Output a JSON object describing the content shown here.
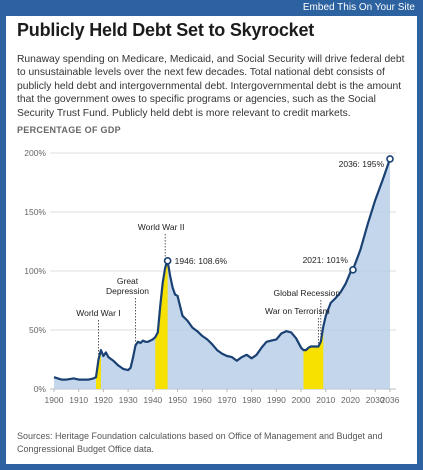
{
  "header": {
    "embed_label": "Embed This On Your Site"
  },
  "title": "Publicly Held Debt Set to Skyrocket",
  "description": "Runaway spending on Medicare, Medicaid, and Social Security will drive federal debt to unsustainable levels over the next few decades. Total national debt consists of publicly held debt and intergovernmental debt. Intergovernmental debt is the amount that the government owes to specific programs or agencies, such as the Social Security Trust Fund. Publicly held debt is more relevant to credit markets.",
  "sources": "Sources: Heritage Foundation calculations based on Office of Management and Budget and Congressional Budget Office data.",
  "colors": {
    "frame": "#2c62a0",
    "area": "#b9cfe8",
    "line": "#1a4173",
    "war_highlight": "#f6e100",
    "grid": "#dddddd",
    "text": "#333333"
  },
  "chart_data": {
    "type": "area",
    "title": "",
    "ylabel": "PERCENTAGE OF GDP",
    "xlabel": "",
    "xlim": [
      1900,
      2036
    ],
    "ylim": [
      0,
      200
    ],
    "x_ticks": [
      "1900",
      "1910",
      "1920",
      "1930",
      "1940",
      "1950",
      "1960",
      "1970",
      "1980",
      "1990",
      "2000",
      "2010",
      "2020",
      "2030",
      "2036"
    ],
    "y_ticks": [
      "0%",
      "50%",
      "100%",
      "150%",
      "200%"
    ],
    "grid": true,
    "series": [
      {
        "name": "",
        "x": [
          1900,
          1903,
          1905,
          1908,
          1910,
          1912,
          1914,
          1916,
          1917,
          1918,
          1919,
          1920,
          1921,
          1922,
          1924,
          1926,
          1928,
          1930,
          1931,
          1932,
          1933,
          1934,
          1935,
          1936,
          1937,
          1938,
          1939,
          1940,
          1941,
          1942,
          1943,
          1944,
          1945,
          1946,
          1947,
          1948,
          1949,
          1950,
          1952,
          1954,
          1956,
          1958,
          1960,
          1962,
          1964,
          1966,
          1968,
          1970,
          1972,
          1974,
          1976,
          1978,
          1980,
          1982,
          1984,
          1986,
          1988,
          1990,
          1992,
          1994,
          1996,
          1998,
          2000,
          2001,
          2002,
          2003,
          2004,
          2005,
          2006,
          2007,
          2008,
          2009,
          2010,
          2012,
          2014,
          2016,
          2018,
          2020,
          2021,
          2024,
          2027,
          2030,
          2033,
          2036
        ],
        "values": [
          10,
          8,
          8,
          9,
          8,
          8,
          8,
          9,
          10,
          25,
          33,
          28,
          31,
          27,
          24,
          20,
          17,
          16,
          18,
          27,
          37,
          40,
          39,
          41,
          40,
          40,
          41,
          42,
          44,
          48,
          70,
          90,
          103,
          108.6,
          96,
          86,
          80,
          79,
          62,
          58,
          52,
          49,
          45,
          42,
          38,
          33,
          30,
          28,
          27,
          24,
          27,
          29,
          26,
          29,
          35,
          40,
          41,
          42,
          47,
          49,
          48,
          43,
          35,
          33,
          33,
          35,
          36,
          36,
          36,
          36,
          40,
          53,
          62,
          73,
          77,
          82,
          89,
          99,
          101,
          118,
          140,
          160,
          177,
          195
        ]
      }
    ],
    "highlights": [
      {
        "label": "World War I",
        "start": 1917,
        "end": 1919
      },
      {
        "label": "World War II",
        "start": 1941,
        "end": 1946
      },
      {
        "label": "War on Terrorism",
        "start": 2001,
        "end": 2009
      }
    ],
    "annotations": [
      {
        "text": "World War I",
        "x": 1918
      },
      {
        "text": "Great Depression",
        "x": 1933
      },
      {
        "text": "World War II",
        "x": 1945
      },
      {
        "text": "Global Recession",
        "x": 2008
      },
      {
        "text": "War on Terrorism",
        "x": 2007
      }
    ],
    "point_labels": [
      {
        "text": "1946: 108.6%",
        "x": 1946,
        "y": 108.6
      },
      {
        "text": "2021: 101%",
        "x": 2021,
        "y": 101
      },
      {
        "text": "2036: 195%",
        "x": 2036,
        "y": 195
      }
    ]
  }
}
